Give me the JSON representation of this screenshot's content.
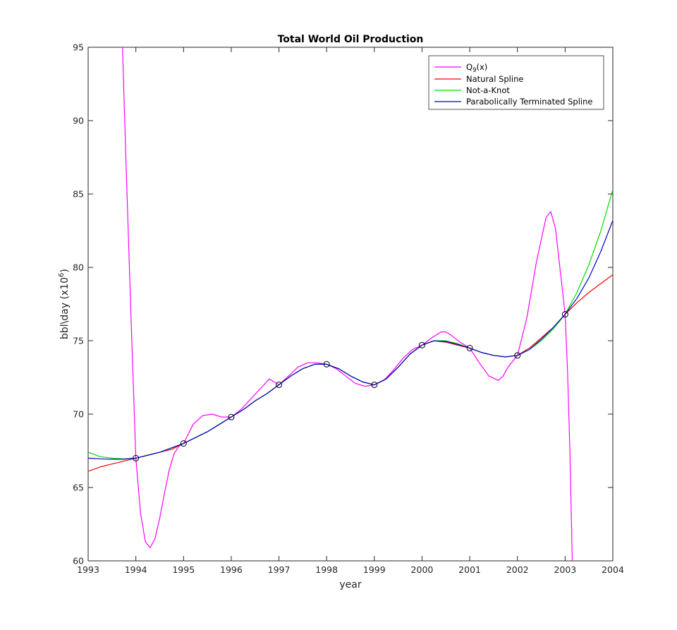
{
  "chart_data": {
    "type": "line",
    "title": "Total World Oil Production",
    "xlabel": "year",
    "ylabel": "bbl\\day (x10",
    "ylabel_sup": "6",
    "ylabel_close": ")",
    "xlim": [
      1993,
      2004
    ],
    "ylim": [
      60,
      95
    ],
    "xticks": [
      1993,
      1994,
      1995,
      1996,
      1997,
      1998,
      1999,
      2000,
      2001,
      2002,
      2003,
      2004
    ],
    "yticks": [
      60,
      65,
      70,
      75,
      80,
      85,
      90,
      95
    ],
    "grid": false,
    "legend_position": "top-right",
    "data_points": {
      "x": [
        1994,
        1995,
        1996,
        1997,
        1998,
        1999,
        2000,
        2001,
        2002,
        2003
      ],
      "y": [
        67.0,
        68.0,
        69.8,
        72.0,
        73.4,
        72.0,
        74.7,
        74.5,
        74.0,
        76.8
      ]
    },
    "series": [
      {
        "name": "Q",
        "name_sub": "9",
        "name_suffix": "(x)",
        "color": "#ff00ff",
        "x": [
          1993.72,
          1993.8,
          1993.9,
          1994.0,
          1994.1,
          1994.2,
          1994.3,
          1994.4,
          1994.5,
          1994.6,
          1994.7,
          1994.8,
          1994.9,
          1995.0,
          1995.2,
          1995.4,
          1995.6,
          1995.8,
          1996.0,
          1996.2,
          1996.4,
          1996.6,
          1996.8,
          1997.0,
          1997.2,
          1997.4,
          1997.6,
          1997.8,
          1998.0,
          1998.2,
          1998.4,
          1998.6,
          1998.8,
          1999.0,
          1999.2,
          1999.4,
          1999.6,
          1999.8,
          2000.0,
          2000.2,
          2000.4,
          2000.5,
          2000.6,
          2000.8,
          2001.0,
          2001.2,
          2001.4,
          2001.6,
          2001.7,
          2001.8,
          2002.0,
          2002.2,
          2002.4,
          2002.6,
          2002.7,
          2002.8,
          2002.9,
          2003.0,
          2003.05,
          2003.1,
          2003.15
        ],
        "y": [
          95.0,
          86.5,
          76.5,
          67.0,
          63.2,
          61.3,
          60.9,
          61.5,
          62.9,
          64.6,
          66.2,
          67.3,
          67.8,
          68.0,
          69.3,
          69.9,
          70.0,
          69.8,
          69.8,
          70.3,
          71.0,
          71.7,
          72.4,
          72.0,
          72.6,
          73.2,
          73.5,
          73.5,
          73.4,
          73.1,
          72.6,
          72.1,
          71.9,
          72.0,
          72.3,
          73.0,
          73.8,
          74.4,
          74.7,
          75.2,
          75.6,
          75.6,
          75.4,
          74.9,
          74.5,
          73.5,
          72.6,
          72.3,
          72.6,
          73.2,
          74.0,
          76.6,
          80.4,
          83.4,
          83.8,
          82.6,
          79.7,
          76.8,
          73.0,
          67.5,
          60.0
        ]
      },
      {
        "name": "Natural Spline",
        "color": "#ff0000",
        "x": [
          1993.0,
          1993.25,
          1993.5,
          1993.75,
          1994.0,
          1994.25,
          1994.5,
          1994.75,
          1995.0,
          1995.25,
          1995.5,
          1995.75,
          1996.0,
          1996.25,
          1996.5,
          1996.75,
          1997.0,
          1997.25,
          1997.5,
          1997.75,
          1998.0,
          1998.25,
          1998.5,
          1998.75,
          1999.0,
          1999.25,
          1999.5,
          1999.75,
          2000.0,
          2000.25,
          2000.5,
          2000.75,
          2001.0,
          2001.25,
          2001.5,
          2001.75,
          2002.0,
          2002.25,
          2002.5,
          2002.75,
          2003.0,
          2003.25,
          2003.5,
          2003.75,
          2004.0
        ],
        "y": [
          66.1,
          66.4,
          66.6,
          66.8,
          67.0,
          67.2,
          67.4,
          67.6,
          68.0,
          68.4,
          68.8,
          69.3,
          69.8,
          70.3,
          70.9,
          71.4,
          72.0,
          72.6,
          73.1,
          73.4,
          73.4,
          73.1,
          72.6,
          72.2,
          72.0,
          72.4,
          73.2,
          74.1,
          74.7,
          75.0,
          74.9,
          74.7,
          74.5,
          74.2,
          74.0,
          73.9,
          74.0,
          74.5,
          75.2,
          75.9,
          76.8,
          77.6,
          78.3,
          78.9,
          79.5
        ]
      },
      {
        "name": "Not-a-Knot",
        "color": "#00dd00",
        "x": [
          1993.0,
          1993.25,
          1993.5,
          1993.75,
          1994.0,
          1994.25,
          1994.5,
          1994.75,
          1995.0,
          1995.25,
          1995.5,
          1995.75,
          1996.0,
          1996.25,
          1996.5,
          1996.75,
          1997.0,
          1997.25,
          1997.5,
          1997.75,
          1998.0,
          1998.25,
          1998.5,
          1998.75,
          1999.0,
          1999.25,
          1999.5,
          1999.75,
          2000.0,
          2000.25,
          2000.5,
          2000.75,
          2001.0,
          2001.25,
          2001.5,
          2001.75,
          2002.0,
          2002.25,
          2002.5,
          2002.75,
          2003.0,
          2003.25,
          2003.5,
          2003.75,
          2004.0
        ],
        "y": [
          67.4,
          67.1,
          67.0,
          66.95,
          67.0,
          67.2,
          67.4,
          67.7,
          68.0,
          68.4,
          68.8,
          69.3,
          69.8,
          70.3,
          70.9,
          71.4,
          72.0,
          72.6,
          73.1,
          73.4,
          73.4,
          73.1,
          72.6,
          72.2,
          72.0,
          72.4,
          73.2,
          74.1,
          74.7,
          75.0,
          75.0,
          74.8,
          74.5,
          74.2,
          74.0,
          73.9,
          74.0,
          74.4,
          75.0,
          75.8,
          76.8,
          78.3,
          80.2,
          82.5,
          85.3
        ]
      },
      {
        "name": "Parabolically Terminated Spline",
        "color": "#0000cc",
        "x": [
          1993.0,
          1993.25,
          1993.5,
          1993.75,
          1994.0,
          1994.25,
          1994.5,
          1994.75,
          1995.0,
          1995.25,
          1995.5,
          1995.75,
          1996.0,
          1996.25,
          1996.5,
          1996.75,
          1997.0,
          1997.25,
          1997.5,
          1997.75,
          1998.0,
          1998.25,
          1998.5,
          1998.75,
          1999.0,
          1999.25,
          1999.5,
          1999.75,
          2000.0,
          2000.25,
          2000.5,
          2000.75,
          2001.0,
          2001.25,
          2001.5,
          2001.75,
          2002.0,
          2002.25,
          2002.5,
          2002.75,
          2003.0,
          2003.25,
          2003.5,
          2003.75,
          2004.0
        ],
        "y": [
          67.0,
          66.95,
          66.92,
          66.93,
          67.0,
          67.2,
          67.4,
          67.7,
          68.0,
          68.4,
          68.8,
          69.3,
          69.8,
          70.3,
          70.9,
          71.4,
          72.0,
          72.6,
          73.1,
          73.4,
          73.4,
          73.1,
          72.6,
          72.2,
          72.0,
          72.4,
          73.2,
          74.1,
          74.7,
          75.0,
          74.95,
          74.75,
          74.5,
          74.2,
          74.0,
          73.9,
          74.0,
          74.4,
          75.1,
          75.9,
          76.8,
          77.9,
          79.3,
          81.1,
          83.2
        ]
      }
    ]
  }
}
